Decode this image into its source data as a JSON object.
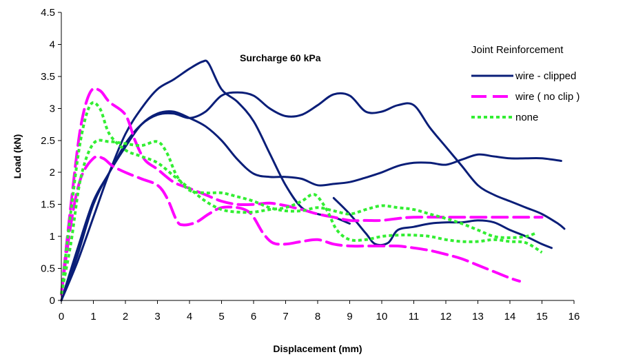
{
  "chart_data": {
    "type": "line",
    "annotation": "Surcharge 60 kPa",
    "xlabel": "Displacement (mm)",
    "ylabel": "Load (kN)",
    "xlim": [
      0,
      16
    ],
    "ylim": [
      0,
      4.5
    ],
    "xticks": [
      0,
      1,
      2,
      3,
      4,
      5,
      6,
      7,
      8,
      9,
      10,
      11,
      12,
      13,
      14,
      15,
      16
    ],
    "yticks": [
      0,
      0.5,
      1,
      1.5,
      2,
      2.5,
      3,
      3.5,
      4,
      4.5
    ],
    "grid": false,
    "legend_title": "Joint Reinforcement",
    "legend_position": "top-right",
    "legend": [
      {
        "label": "wire - clipped",
        "color": "#0a1e78",
        "style": "solid"
      },
      {
        "label": "wire ( no clip )",
        "color": "#ff00ff",
        "style": "dashed"
      },
      {
        "label": "none",
        "color": "#33ee33",
        "style": "dotted"
      }
    ],
    "series": [
      {
        "group": "wire - clipped",
        "color": "#0a1e78",
        "style": "solid",
        "points": [
          [
            0,
            0
          ],
          [
            0.5,
            0.6
          ],
          [
            1,
            1.3
          ],
          [
            1.5,
            2.0
          ],
          [
            2,
            2.6
          ],
          [
            2.5,
            3.0
          ],
          [
            3,
            3.3
          ],
          [
            3.5,
            3.45
          ],
          [
            4,
            3.62
          ],
          [
            4.4,
            3.73
          ],
          [
            4.6,
            3.7
          ],
          [
            5,
            3.3
          ],
          [
            5.5,
            3.1
          ],
          [
            6,
            2.8
          ],
          [
            6.5,
            2.3
          ],
          [
            7,
            1.8
          ],
          [
            7.5,
            1.45
          ],
          [
            8,
            1.35
          ],
          [
            8.5,
            1.3
          ],
          [
            9,
            1.2
          ]
        ]
      },
      {
        "group": "wire - clipped",
        "color": "#0a1e78",
        "style": "solid",
        "points": [
          [
            0,
            0
          ],
          [
            0.5,
            0.8
          ],
          [
            1,
            1.55
          ],
          [
            1.5,
            2.0
          ],
          [
            2,
            2.45
          ],
          [
            2.5,
            2.75
          ],
          [
            3,
            2.9
          ],
          [
            3.5,
            2.92
          ],
          [
            4,
            2.85
          ],
          [
            4.5,
            2.95
          ],
          [
            5,
            3.2
          ],
          [
            5.5,
            3.25
          ],
          [
            6,
            3.2
          ],
          [
            6.5,
            3.0
          ],
          [
            7,
            2.88
          ],
          [
            7.5,
            2.9
          ],
          [
            8,
            3.05
          ],
          [
            8.5,
            3.22
          ],
          [
            9,
            3.2
          ],
          [
            9.5,
            2.95
          ],
          [
            10,
            2.95
          ],
          [
            10.5,
            3.05
          ],
          [
            11,
            3.05
          ],
          [
            11.5,
            2.7
          ],
          [
            12,
            2.4
          ],
          [
            12.5,
            2.1
          ],
          [
            13,
            1.8
          ],
          [
            13.5,
            1.65
          ],
          [
            14,
            1.55
          ],
          [
            14.5,
            1.45
          ],
          [
            15,
            1.35
          ],
          [
            15.5,
            1.2
          ],
          [
            15.7,
            1.12
          ]
        ]
      },
      {
        "group": "wire - clipped",
        "color": "#0a1e78",
        "style": "solid",
        "points": [
          [
            0,
            0
          ],
          [
            0.5,
            0.7
          ],
          [
            1,
            1.5
          ],
          [
            1.5,
            2.0
          ],
          [
            2,
            2.4
          ],
          [
            2.5,
            2.75
          ],
          [
            3,
            2.92
          ],
          [
            3.5,
            2.95
          ],
          [
            4,
            2.85
          ],
          [
            4.5,
            2.72
          ],
          [
            5,
            2.5
          ],
          [
            5.5,
            2.2
          ],
          [
            6,
            1.98
          ],
          [
            6.5,
            1.93
          ],
          [
            7,
            1.93
          ],
          [
            7.5,
            1.9
          ],
          [
            8,
            1.8
          ],
          [
            8.5,
            1.82
          ],
          [
            9,
            1.85
          ],
          [
            9.5,
            1.92
          ],
          [
            10,
            2.0
          ],
          [
            10.5,
            2.1
          ],
          [
            11,
            2.15
          ],
          [
            11.5,
            2.15
          ],
          [
            12,
            2.12
          ],
          [
            12.5,
            2.2
          ],
          [
            13,
            2.28
          ],
          [
            13.5,
            2.25
          ],
          [
            14,
            2.22
          ],
          [
            14.5,
            2.22
          ],
          [
            15,
            2.22
          ],
          [
            15.6,
            2.18
          ]
        ]
      },
      {
        "group": "wire - clipped",
        "color": "#0a1e78",
        "style": "solid",
        "points": [
          [
            8.5,
            1.6
          ],
          [
            9,
            1.35
          ],
          [
            9.5,
            1.05
          ],
          [
            9.8,
            0.88
          ],
          [
            10.2,
            0.9
          ],
          [
            10.5,
            1.1
          ],
          [
            11,
            1.15
          ],
          [
            11.5,
            1.2
          ],
          [
            12,
            1.22
          ],
          [
            12.5,
            1.22
          ],
          [
            13,
            1.25
          ],
          [
            13.5,
            1.22
          ],
          [
            14,
            1.1
          ],
          [
            14.5,
            1.0
          ],
          [
            15,
            0.88
          ],
          [
            15.3,
            0.82
          ]
        ]
      },
      {
        "group": "wire ( no clip )",
        "color": "#ff00ff",
        "style": "dashed",
        "points": [
          [
            0,
            0.1
          ],
          [
            0.3,
            1.5
          ],
          [
            0.6,
            2.7
          ],
          [
            0.9,
            3.25
          ],
          [
            1.2,
            3.28
          ],
          [
            1.5,
            3.1
          ],
          [
            2,
            2.9
          ],
          [
            2.3,
            2.5
          ],
          [
            2.6,
            2.2
          ],
          [
            3,
            2.05
          ],
          [
            3.5,
            1.85
          ],
          [
            4,
            1.75
          ],
          [
            4.5,
            1.65
          ],
          [
            5,
            1.55
          ],
          [
            5.5,
            1.5
          ],
          [
            6,
            1.5
          ],
          [
            6.5,
            1.52
          ],
          [
            7,
            1.48
          ],
          [
            7.5,
            1.42
          ],
          [
            8,
            1.35
          ],
          [
            8.5,
            1.3
          ],
          [
            9,
            1.25
          ],
          [
            9.5,
            1.25
          ],
          [
            10,
            1.25
          ],
          [
            10.5,
            1.28
          ],
          [
            11,
            1.3
          ],
          [
            12,
            1.3
          ],
          [
            13,
            1.3
          ],
          [
            14,
            1.3
          ],
          [
            14.5,
            1.3
          ],
          [
            15,
            1.3
          ]
        ]
      },
      {
        "group": "wire ( no clip )",
        "color": "#ff00ff",
        "style": "dashed",
        "points": [
          [
            0,
            0.1
          ],
          [
            0.3,
            1.2
          ],
          [
            0.6,
            1.9
          ],
          [
            1,
            2.22
          ],
          [
            1.3,
            2.22
          ],
          [
            1.6,
            2.1
          ],
          [
            2,
            2.0
          ],
          [
            2.5,
            1.9
          ],
          [
            3,
            1.8
          ],
          [
            3.3,
            1.6
          ],
          [
            3.6,
            1.25
          ],
          [
            3.8,
            1.18
          ],
          [
            4.2,
            1.22
          ],
          [
            4.6,
            1.35
          ],
          [
            5,
            1.45
          ],
          [
            5.5,
            1.45
          ],
          [
            5.8,
            1.4
          ],
          [
            6,
            1.3
          ],
          [
            6.3,
            1.05
          ],
          [
            6.6,
            0.9
          ],
          [
            7,
            0.88
          ],
          [
            7.5,
            0.92
          ],
          [
            8,
            0.95
          ],
          [
            8.5,
            0.88
          ],
          [
            9,
            0.85
          ],
          [
            9.5,
            0.85
          ],
          [
            10,
            0.85
          ],
          [
            10.5,
            0.85
          ],
          [
            11,
            0.82
          ],
          [
            11.5,
            0.78
          ],
          [
            12,
            0.72
          ],
          [
            12.5,
            0.65
          ],
          [
            13,
            0.55
          ],
          [
            13.5,
            0.45
          ],
          [
            14,
            0.35
          ],
          [
            14.3,
            0.3
          ]
        ]
      },
      {
        "group": "none",
        "color": "#33ee33",
        "style": "dotted",
        "points": [
          [
            0,
            0.1
          ],
          [
            0.3,
            1.4
          ],
          [
            0.6,
            2.5
          ],
          [
            0.9,
            3.05
          ],
          [
            1.2,
            3.0
          ],
          [
            1.5,
            2.6
          ],
          [
            2,
            2.35
          ],
          [
            2.5,
            2.25
          ],
          [
            3,
            2.15
          ],
          [
            3.5,
            1.95
          ],
          [
            4,
            1.75
          ],
          [
            4.5,
            1.55
          ],
          [
            5,
            1.42
          ],
          [
            5.5,
            1.38
          ],
          [
            6,
            1.38
          ],
          [
            6.5,
            1.42
          ],
          [
            7,
            1.45
          ],
          [
            7.5,
            1.55
          ],
          [
            7.8,
            1.65
          ],
          [
            8,
            1.62
          ],
          [
            8.3,
            1.4
          ],
          [
            8.6,
            1.1
          ],
          [
            9,
            0.95
          ],
          [
            9.5,
            0.95
          ],
          [
            10,
            1.0
          ],
          [
            10.5,
            1.02
          ],
          [
            11,
            1.02
          ],
          [
            11.5,
            1.0
          ],
          [
            12,
            0.95
          ],
          [
            12.5,
            0.92
          ],
          [
            13,
            0.92
          ],
          [
            13.5,
            0.95
          ],
          [
            14,
            0.92
          ],
          [
            14.5,
            0.9
          ],
          [
            15,
            0.75
          ]
        ]
      },
      {
        "group": "none",
        "color": "#33ee33",
        "style": "dotted",
        "points": [
          [
            0,
            0.1
          ],
          [
            0.3,
            0.9
          ],
          [
            0.6,
            1.9
          ],
          [
            1,
            2.45
          ],
          [
            1.5,
            2.48
          ],
          [
            2,
            2.45
          ],
          [
            2.5,
            2.42
          ],
          [
            3,
            2.48
          ],
          [
            3.3,
            2.3
          ],
          [
            3.6,
            1.95
          ],
          [
            4,
            1.72
          ],
          [
            4.5,
            1.68
          ],
          [
            5,
            1.68
          ],
          [
            5.5,
            1.62
          ],
          [
            6,
            1.55
          ],
          [
            6.5,
            1.45
          ],
          [
            7,
            1.4
          ],
          [
            7.5,
            1.4
          ],
          [
            8,
            1.45
          ],
          [
            8.5,
            1.4
          ],
          [
            9,
            1.35
          ],
          [
            9.5,
            1.42
          ],
          [
            10,
            1.48
          ],
          [
            10.5,
            1.45
          ],
          [
            11,
            1.42
          ],
          [
            11.5,
            1.35
          ],
          [
            12,
            1.28
          ],
          [
            12.5,
            1.2
          ],
          [
            13,
            1.1
          ],
          [
            13.5,
            1.0
          ],
          [
            14,
            0.98
          ],
          [
            14.5,
            1.0
          ],
          [
            14.8,
            1.05
          ]
        ]
      }
    ]
  }
}
